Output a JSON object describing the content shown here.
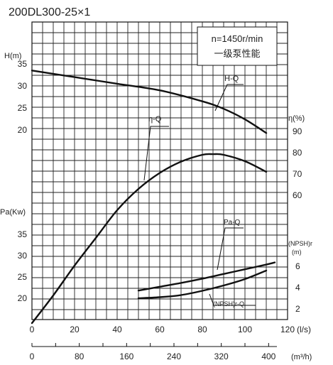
{
  "chart_data": {
    "type": "line",
    "title": "200DL300-25×1",
    "annotation_box": {
      "line1": "n=1450r/min",
      "line2": "一级泵性能"
    },
    "x_axis_primary": {
      "label": "(l/s)",
      "ticks": [
        0,
        20,
        40,
        60,
        80,
        100,
        120
      ],
      "tick_labels": [
        "0",
        "20",
        "40",
        "60",
        "80",
        "100",
        "120"
      ],
      "range": [
        0,
        120
      ]
    },
    "x_axis_secondary": {
      "label": "(m³/h)",
      "ticks": [
        0,
        80,
        160,
        240,
        320,
        400
      ],
      "tick_labels": [
        "0",
        "80",
        "160",
        "240",
        "320",
        "400"
      ],
      "range": [
        0,
        432
      ]
    },
    "axis_head": {
      "label": "H(m)",
      "ticks": [
        20,
        25,
        30,
        35
      ],
      "tick_labels": [
        "20",
        "25",
        "30",
        "35"
      ]
    },
    "axis_power": {
      "label": "Pa(Kw)",
      "ticks": [
        20,
        25,
        30,
        35
      ],
      "tick_labels": [
        "20",
        "25",
        "30",
        "35"
      ]
    },
    "axis_eff": {
      "label": "η(%)",
      "ticks": [
        60,
        70,
        80,
        90
      ],
      "tick_labels": [
        "60",
        "70",
        "80",
        "90"
      ]
    },
    "axis_npsh": {
      "label_line1": "(NPSH)r",
      "label_line2": "(m)",
      "ticks": [
        2,
        4,
        6
      ],
      "tick_labels": [
        "2",
        "4",
        "6"
      ]
    },
    "series": [
      {
        "name": "H-Q",
        "axis": "head",
        "points": [
          [
            0,
            33.5
          ],
          [
            20,
            32.0
          ],
          [
            40,
            30.5
          ],
          [
            60,
            29.0
          ],
          [
            80,
            26.5
          ],
          [
            90,
            24.8
          ],
          [
            100,
            22.4
          ],
          [
            110,
            19.3
          ]
        ]
      },
      {
        "name": "η-Q",
        "axis": "eff",
        "points": [
          [
            0,
            0
          ],
          [
            10,
            13
          ],
          [
            20,
            27
          ],
          [
            30,
            40
          ],
          [
            40,
            53
          ],
          [
            50,
            63
          ],
          [
            60,
            70.5
          ],
          [
            70,
            75.8
          ],
          [
            80,
            79
          ],
          [
            85,
            79.3
          ],
          [
            90,
            79
          ],
          [
            100,
            76
          ],
          [
            110,
            71
          ]
        ]
      },
      {
        "name": "Pa-Q",
        "axis": "power",
        "points": [
          [
            50,
            21.8
          ],
          [
            60,
            22.7
          ],
          [
            70,
            23.6
          ],
          [
            80,
            24.6
          ],
          [
            90,
            25.7
          ],
          [
            100,
            26.8
          ],
          [
            110,
            27.9
          ],
          [
            114,
            28.4
          ]
        ]
      },
      {
        "name": "(NPSH)r-Q",
        "axis": "npsh",
        "points": [
          [
            50,
            3.0
          ],
          [
            60,
            3.1
          ],
          [
            70,
            3.3
          ],
          [
            80,
            3.7
          ],
          [
            90,
            4.2
          ],
          [
            100,
            4.8
          ],
          [
            110,
            5.6
          ]
        ]
      }
    ]
  }
}
